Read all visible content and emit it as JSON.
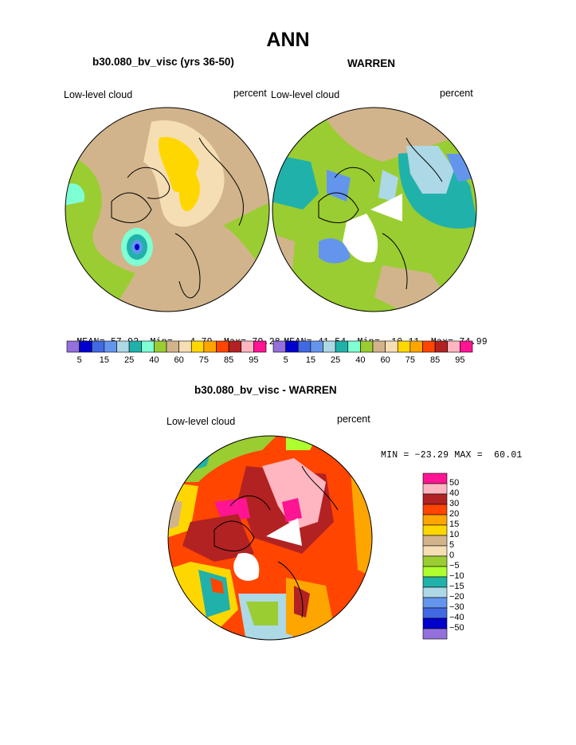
{
  "main_title": "ANN",
  "panels": [
    {
      "title": "b30.080_bv_visc (yrs 36-50)",
      "left_label": "Low-level cloud",
      "right_label": "percent",
      "stats": {
        "mean_label": "MEAN=",
        "mean": "57.92",
        "min_label": "Min=",
        "min": "4.79",
        "max_label": "Max=",
        "max": "79.28"
      }
    },
    {
      "title": "WARREN",
      "left_label": "Low-level cloud",
      "right_label": "percent",
      "stats": {
        "mean_label": "MEAN=",
        "mean": "41.54",
        "min_label": "Min=",
        "min": "10.11",
        "max_label": "Max=",
        "max": "74.99"
      }
    },
    {
      "title": "b30.080_bv_visc - WARREN",
      "left_label": "Low-level cloud",
      "right_label": "percent",
      "stats_line": "MIN = −23.29 MAX =  60.01"
    }
  ],
  "colorbar_abs": {
    "colors": [
      "#9370db",
      "#0000cd",
      "#4169e1",
      "#6495ed",
      "#add8e6",
      "#20b2aa",
      "#7fffd4",
      "#9acd32",
      "#d2b48c",
      "#f5deb3",
      "#ffd700",
      "#ffa500",
      "#ff4500",
      "#b22222",
      "#ffb6c1",
      "#ff1493"
    ],
    "tick_labels": [
      "5",
      "15",
      "25",
      "40",
      "60",
      "75",
      "85",
      "95"
    ]
  },
  "colorbar_diff": {
    "colors": [
      "#ff1493",
      "#ffb6c1",
      "#b22222",
      "#ff4500",
      "#ffa500",
      "#ffd700",
      "#d2b48c",
      "#f5deb3",
      "#9acd32",
      "#adff2f",
      "#20b2aa",
      "#add8e6",
      "#6495ed",
      "#4169e1",
      "#0000cd",
      "#9370db"
    ],
    "tick_labels": [
      "50",
      "40",
      "30",
      "20",
      "15",
      "10",
      "5",
      "0",
      "−5",
      "−10",
      "−15",
      "−20",
      "−30",
      "−40",
      "−50"
    ]
  }
}
